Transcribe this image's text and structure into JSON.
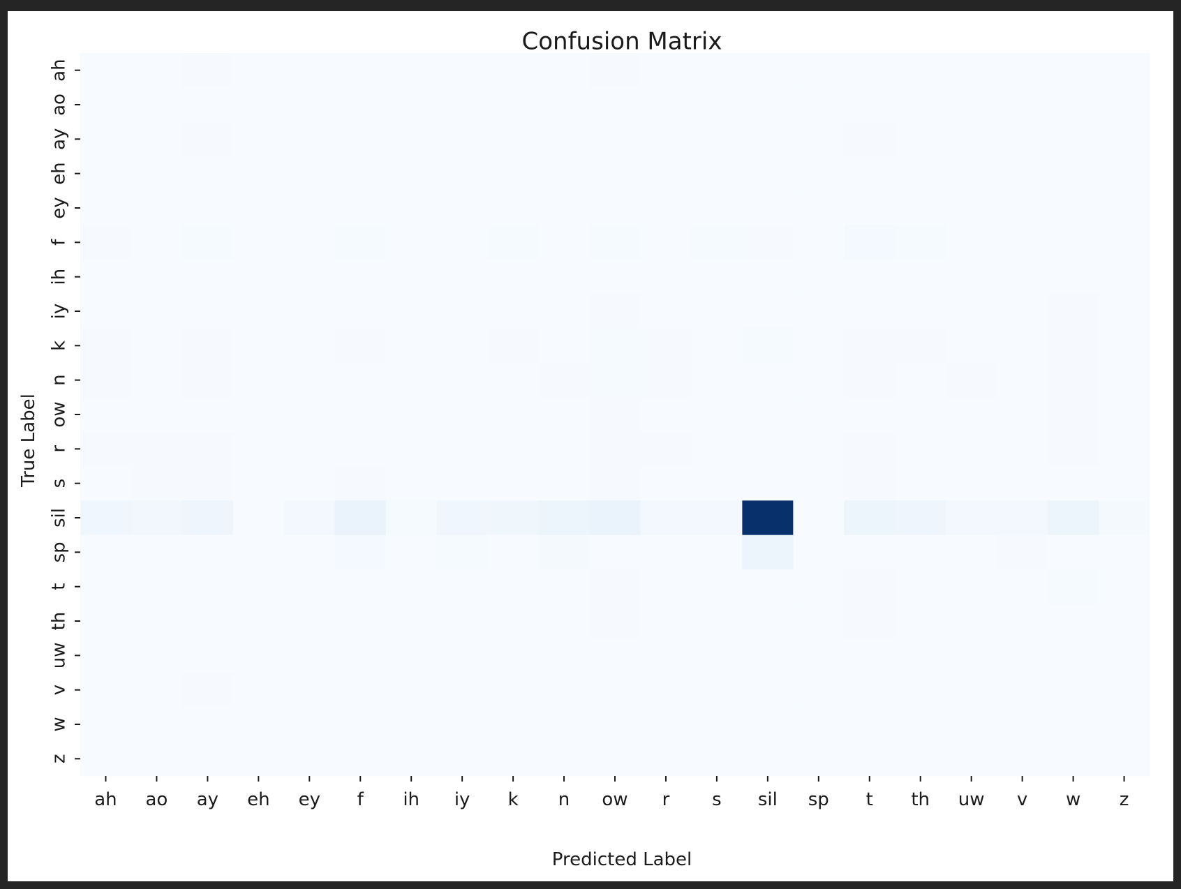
{
  "chart_data": {
    "type": "heatmap",
    "title": "Confusion Matrix",
    "xlabel": "Predicted Label",
    "ylabel": "True Label",
    "x_categories": [
      "ah",
      "ao",
      "ay",
      "eh",
      "ey",
      "f",
      "ih",
      "iy",
      "k",
      "n",
      "ow",
      "r",
      "s",
      "sil",
      "sp",
      "t",
      "th",
      "uw",
      "v",
      "w",
      "z"
    ],
    "y_categories": [
      "ah",
      "ao",
      "ay",
      "eh",
      "ey",
      "f",
      "ih",
      "iy",
      "k",
      "n",
      "ow",
      "r",
      "s",
      "sil",
      "sp",
      "t",
      "th",
      "uw",
      "v",
      "w",
      "z"
    ],
    "colormap": "Blues",
    "vmin": 0,
    "vmax": 100,
    "legend": "none",
    "values": [
      [
        0,
        0,
        1,
        0,
        0,
        0,
        0,
        0,
        0,
        0,
        1,
        0,
        0,
        0,
        0,
        0,
        0,
        0,
        0,
        0,
        0
      ],
      [
        0,
        0,
        0,
        0,
        0,
        0,
        0,
        0,
        0,
        0,
        0,
        0,
        0,
        0,
        0,
        0,
        0,
        0,
        0,
        0,
        0
      ],
      [
        0,
        0,
        1,
        0,
        0,
        0,
        0,
        0,
        0,
        0,
        0,
        0,
        0,
        0,
        0,
        1,
        0,
        0,
        0,
        0,
        0
      ],
      [
        0,
        0,
        0,
        0,
        0,
        0,
        0,
        0,
        0,
        0,
        0,
        0,
        0,
        0,
        0,
        0,
        0,
        0,
        0,
        0,
        0
      ],
      [
        0,
        0,
        0,
        0,
        0,
        0,
        0,
        0,
        0,
        0,
        0,
        0,
        0,
        0,
        0,
        0,
        0,
        0,
        0,
        0,
        0
      ],
      [
        1,
        0,
        2,
        0,
        0,
        2,
        0,
        0,
        2,
        0,
        2,
        0,
        2,
        1,
        0,
        4,
        2,
        0,
        0,
        0,
        0
      ],
      [
        0,
        0,
        0,
        0,
        0,
        0,
        0,
        0,
        0,
        0,
        0,
        0,
        0,
        0,
        0,
        0,
        0,
        0,
        0,
        0,
        0
      ],
      [
        0,
        0,
        0,
        0,
        0,
        0,
        0,
        0,
        0,
        0,
        1,
        0,
        0,
        0,
        0,
        0,
        0,
        0,
        0,
        1,
        0
      ],
      [
        1,
        0,
        1,
        0,
        0,
        1,
        0,
        0,
        1,
        0,
        2,
        1,
        0,
        2,
        0,
        1,
        1,
        0,
        0,
        1,
        0
      ],
      [
        1,
        0,
        1,
        0,
        0,
        0,
        0,
        0,
        0,
        1,
        2,
        1,
        0,
        0,
        0,
        1,
        0,
        1,
        0,
        1,
        0
      ],
      [
        0,
        0,
        0,
        0,
        0,
        0,
        0,
        0,
        0,
        0,
        1,
        0,
        0,
        0,
        0,
        0,
        0,
        0,
        0,
        1,
        0
      ],
      [
        1,
        1,
        1,
        0,
        0,
        0,
        0,
        0,
        0,
        0,
        1,
        1,
        0,
        0,
        0,
        1,
        0,
        0,
        0,
        1,
        0
      ],
      [
        0,
        1,
        1,
        0,
        0,
        1,
        0,
        0,
        0,
        0,
        1,
        0,
        0,
        0,
        0,
        1,
        0,
        0,
        0,
        0,
        0
      ],
      [
        8,
        7,
        10,
        0,
        5,
        14,
        2,
        8,
        9,
        12,
        15,
        6,
        5,
        100,
        0,
        12,
        10,
        5,
        6,
        11,
        3
      ],
      [
        0,
        0,
        0,
        0,
        0,
        4,
        0,
        2,
        0,
        3,
        0,
        0,
        0,
        12,
        0,
        0,
        0,
        0,
        1,
        0,
        0
      ],
      [
        0,
        0,
        0,
        0,
        0,
        0,
        0,
        0,
        0,
        0,
        1,
        0,
        0,
        0,
        0,
        1,
        0,
        0,
        0,
        2,
        0
      ],
      [
        0,
        0,
        0,
        0,
        0,
        0,
        0,
        0,
        0,
        0,
        1,
        0,
        0,
        0,
        0,
        1,
        0,
        0,
        0,
        0,
        0
      ],
      [
        0,
        0,
        0,
        0,
        0,
        0,
        0,
        0,
        0,
        0,
        0,
        0,
        0,
        0,
        0,
        0,
        0,
        0,
        0,
        0,
        0
      ],
      [
        0,
        0,
        1,
        0,
        0,
        0,
        0,
        0,
        0,
        0,
        0,
        0,
        0,
        0,
        0,
        0,
        0,
        0,
        0,
        0,
        0
      ],
      [
        0,
        0,
        0,
        0,
        0,
        0,
        0,
        0,
        0,
        0,
        0,
        0,
        0,
        0,
        0,
        0,
        0,
        0,
        0,
        0,
        0
      ],
      [
        0,
        0,
        0,
        0,
        0,
        0,
        0,
        0,
        0,
        0,
        0,
        0,
        0,
        0,
        0,
        0,
        0,
        0,
        0,
        0,
        0
      ]
    ]
  }
}
